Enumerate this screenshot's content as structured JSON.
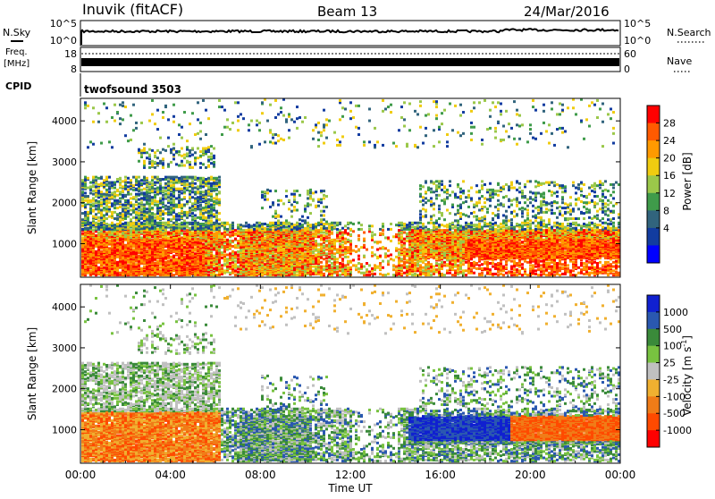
{
  "header": {
    "station": "Inuvik (fitACF)",
    "beam": "Beam 13",
    "date": "24/Mar/2016"
  },
  "top_panels": {
    "nsky_label": "N.Sky",
    "nsky_ticks": [
      "10^5",
      "10^0"
    ],
    "nsearch_label": "N.Search",
    "nsearch_ticks": [
      "10^5",
      "10^0"
    ],
    "freq_label": "Freq.",
    "freq_unit": "[MHz]",
    "freq_ticks": [
      "18",
      "8"
    ],
    "nave_label": "Nave",
    "nave_ticks": [
      "60",
      "0"
    ],
    "cpid_label": "CPID",
    "cpid_value": "twofsound 3503"
  },
  "chart_data": [
    {
      "type": "heatmap",
      "name": "power",
      "ylabel": "Slant Range [km]",
      "ylim": [
        180,
        4550
      ],
      "yticks": [
        1000,
        2000,
        3000,
        4000
      ],
      "xlim": [
        0,
        24
      ],
      "colorbar": {
        "label": "Power [dB]",
        "ticks": [
          "28",
          "24",
          "20",
          "16",
          "12",
          "8",
          "4"
        ],
        "colors": [
          "#ff0000",
          "#ff5a00",
          "#ff9a00",
          "#f0cc10",
          "#9bc84a",
          "#3f9b4a",
          "#31647d",
          "#123ca0",
          "#0000ff"
        ]
      }
    },
    {
      "type": "heatmap",
      "name": "velocity",
      "ylabel": "Slant Range [km]",
      "ylim": [
        180,
        4550
      ],
      "yticks": [
        1000,
        2000,
        3000,
        4000
      ],
      "xlim": [
        0,
        24
      ],
      "xlabel": "Time UT",
      "xticks": [
        "00:00",
        "04:00",
        "08:00",
        "12:00",
        "16:00",
        "20:00",
        "00:00"
      ],
      "colorbar": {
        "label": "Velocity [m s",
        "label_sup": "-1",
        "label_end": "]",
        "ticks": [
          "1000",
          "500",
          "100",
          "25",
          "-25",
          "-100",
          "-500",
          "-1000"
        ],
        "colors": [
          "#1020d0",
          "#2a58b0",
          "#3a8a3a",
          "#78c240",
          "#c0c0c0",
          "#f0b030",
          "#f07c18",
          "#ff4a00",
          "#ff0000"
        ]
      }
    }
  ]
}
